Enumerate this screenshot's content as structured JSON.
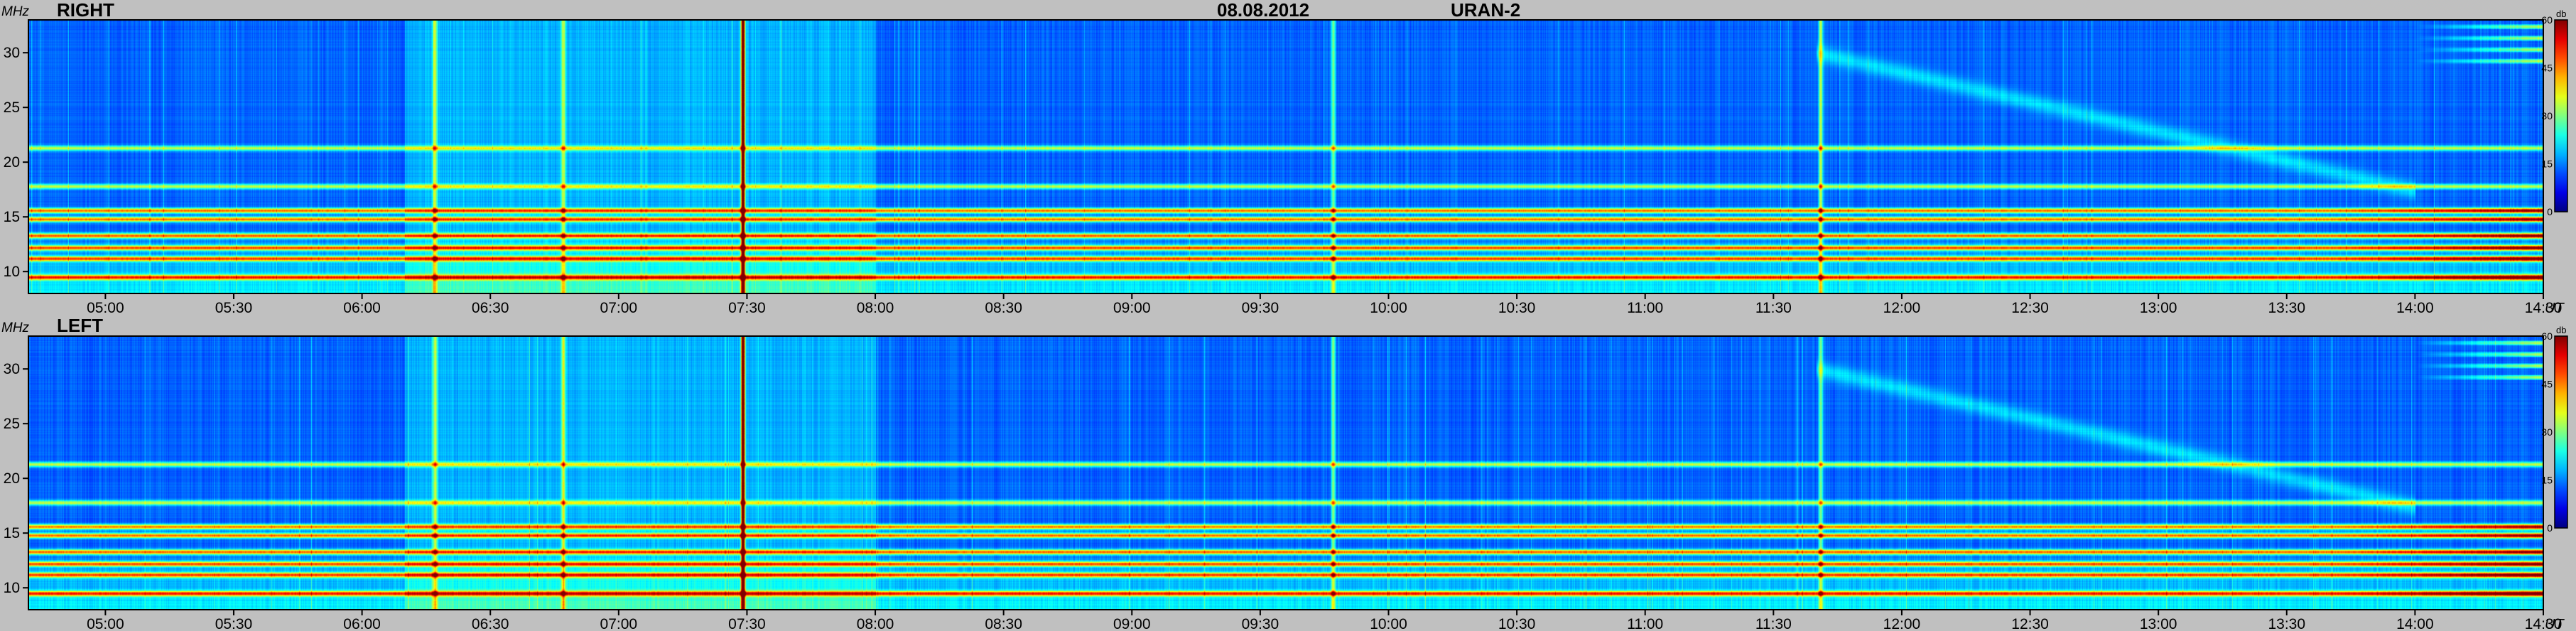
{
  "header": {
    "date": "08.08.2012",
    "instrument": "URAN-2"
  },
  "chart_data": [
    {
      "type": "heatmap",
      "title": "RIGHT",
      "ylabel": "MHz",
      "xunit": "UT",
      "x_ticks": [
        "05:00",
        "05:30",
        "06:00",
        "06:30",
        "07:00",
        "07:30",
        "08:00",
        "08:30",
        "09:00",
        "09:30",
        "10:00",
        "10:30",
        "11:00",
        "11:30",
        "12:00",
        "12:30",
        "13:00",
        "13:30",
        "14:00",
        "14:30"
      ],
      "y_ticks": [
        10,
        15,
        20,
        25,
        30
      ],
      "ylim": [
        8,
        33
      ],
      "colorbar": {
        "unit": "db",
        "ticks": [
          0,
          15,
          30,
          45,
          60
        ],
        "range": [
          0,
          60
        ]
      },
      "features": {
        "horizontal_bands_mhz": [
          9.5,
          11.2,
          12.2,
          13.3,
          14.8,
          15.6,
          17.8,
          21.3
        ],
        "vertical_bursts_time": [
          "06:17",
          "06:47",
          "07:29",
          "09:47",
          "11:41"
        ],
        "strong_burst_time": "07:29"
      }
    },
    {
      "type": "heatmap",
      "title": "LEFT",
      "ylabel": "MHz",
      "xunit": "UT",
      "x_ticks": [
        "05:00",
        "05:30",
        "06:00",
        "06:30",
        "07:00",
        "07:30",
        "08:00",
        "08:30",
        "09:00",
        "09:30",
        "10:00",
        "10:30",
        "11:00",
        "11:30",
        "12:00",
        "12:30",
        "13:00",
        "13:30",
        "14:00",
        "14:30"
      ],
      "y_ticks": [
        10,
        15,
        20,
        25,
        30
      ],
      "ylim": [
        8,
        33
      ],
      "colorbar": {
        "unit": "db",
        "ticks": [
          0,
          15,
          30,
          45,
          60
        ],
        "range": [
          0,
          60
        ]
      },
      "features": {
        "horizontal_bands_mhz": [
          9.5,
          11.2,
          12.2,
          13.3,
          14.8,
          15.6,
          17.8,
          21.3
        ],
        "vertical_bursts_time": [
          "06:17",
          "06:47",
          "07:29",
          "09:47",
          "11:41"
        ],
        "strong_burst_time": "07:29"
      }
    }
  ]
}
